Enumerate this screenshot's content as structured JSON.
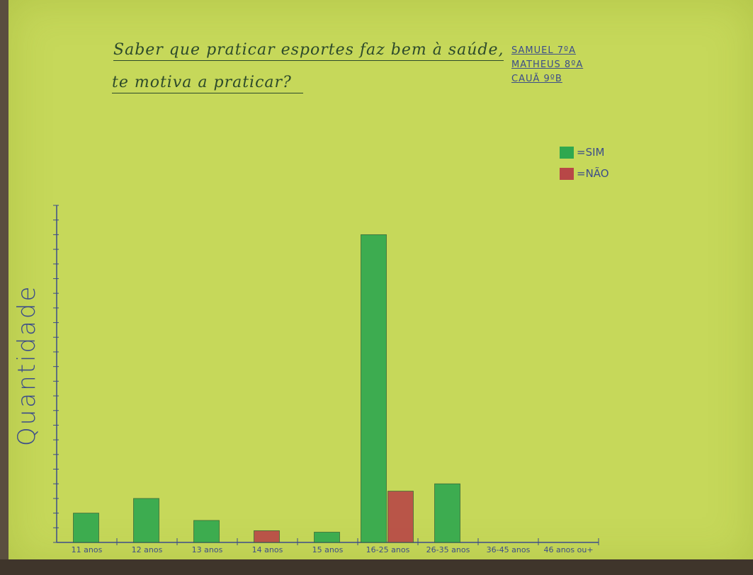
{
  "chart_data": {
    "type": "bar",
    "title_line1": "Saber que praticar esportes faz bem à saúde,",
    "title_line2": "te motiva a praticar?",
    "authors": [
      "SAMUEL 7ºA",
      "MATHEUS 8ºA",
      "CAUÃ 9ºB"
    ],
    "ylabel": "Quantidade",
    "xlabel": "",
    "categories": [
      "11 anos",
      "12 anos",
      "13 anos",
      "14 anos",
      "15 anos",
      "16-25 anos",
      "26-35 anos",
      "36-45 anos",
      "46 anos ou+"
    ],
    "series": [
      {
        "name": "SIM",
        "color": "#2fa84f",
        "values": [
          2,
          3,
          1.5,
          0,
          0.7,
          21,
          4,
          0,
          0
        ]
      },
      {
        "name": "NÃO",
        "color": "#b84747",
        "values": [
          0,
          0,
          0,
          0.8,
          0,
          3.5,
          0,
          0,
          0
        ]
      }
    ],
    "ylim": [
      0,
      23
    ],
    "grid": false,
    "legend_position": "top-right"
  }
}
